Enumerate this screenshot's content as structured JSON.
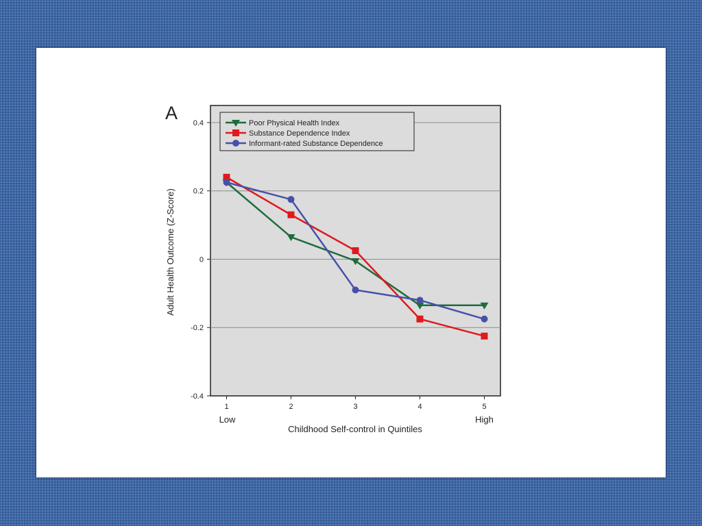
{
  "chart_data": {
    "type": "line",
    "panel_label": "A",
    "title": "",
    "xlabel": "Childhood Self-control in Quintiles",
    "ylabel": "Adult Health Outcome (Z-Score)",
    "x": [
      1,
      2,
      3,
      4,
      5
    ],
    "x_ticks": [
      "1",
      "2",
      "3",
      "4",
      "5"
    ],
    "x_end_labels": {
      "low": "Low",
      "high": "High"
    },
    "xlim": [
      0.75,
      5.25
    ],
    "ylim": [
      -0.4,
      0.45
    ],
    "y_ticks": [
      -0.4,
      -0.2,
      0,
      0.2,
      0.4
    ],
    "y_tick_labels": [
      "-0.4",
      "-0.2",
      "0",
      "0.2",
      "0.4"
    ],
    "grid": "horizontal",
    "legend_position": "top-left",
    "series": [
      {
        "name": "Poor Physical Health Index",
        "marker": "triangle-down",
        "color": "#1e6b3c",
        "values": [
          0.225,
          0.065,
          -0.005,
          -0.135,
          -0.135
        ]
      },
      {
        "name": "Substance Dependence Index",
        "marker": "square",
        "color": "#e0191e",
        "values": [
          0.24,
          0.13,
          0.025,
          -0.175,
          -0.225
        ]
      },
      {
        "name": "Informant-rated Substance Dependence",
        "marker": "circle",
        "color": "#4750a8",
        "values": [
          0.225,
          0.175,
          -0.09,
          -0.12,
          -0.175
        ]
      }
    ]
  }
}
